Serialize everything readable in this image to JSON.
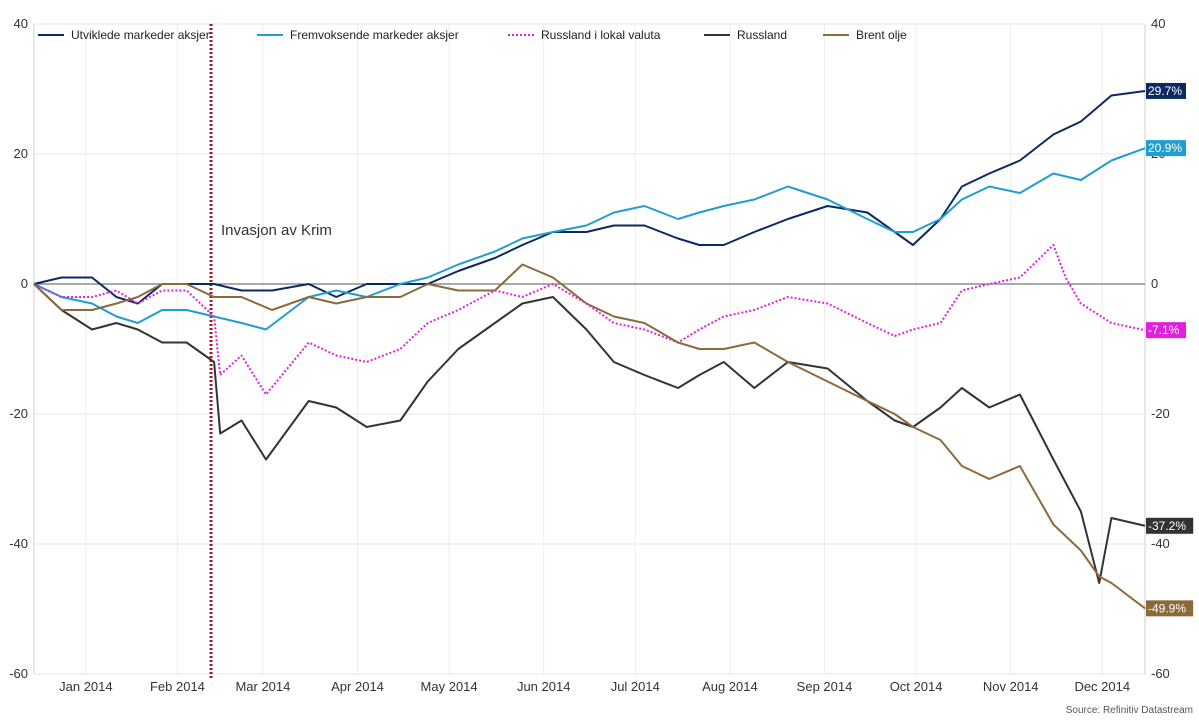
{
  "chart_data": {
    "type": "line",
    "y_axis": {
      "min": -60,
      "max": 40,
      "ticks": [
        40,
        20,
        0,
        -20,
        -40,
        -60
      ],
      "side": "both"
    },
    "x_axis": {
      "domain": [
        "2014-01-01",
        "2014-12-31"
      ],
      "ticks": [
        {
          "date": "2014-01-18",
          "label": "Jan 2014"
        },
        {
          "date": "2014-02-17",
          "label": "Feb 2014"
        },
        {
          "date": "2014-03-17",
          "label": "Mar 2014"
        },
        {
          "date": "2014-04-17",
          "label": "Apr 2014"
        },
        {
          "date": "2014-05-17",
          "label": "May 2014"
        },
        {
          "date": "2014-06-17",
          "label": "Jun 2014"
        },
        {
          "date": "2014-07-17",
          "label": "Jul 2014"
        },
        {
          "date": "2014-08-17",
          "label": "Aug 2014"
        },
        {
          "date": "2014-09-17",
          "label": "Sep 2014"
        },
        {
          "date": "2014-10-17",
          "label": "Oct 2014"
        },
        {
          "date": "2014-11-17",
          "label": "Nov 2014"
        },
        {
          "date": "2014-12-17",
          "label": "Dec 2014"
        }
      ]
    },
    "grid": true,
    "zero_line": true,
    "legend_position": "top",
    "annotation": {
      "date": "2014-02-28",
      "label": "Invasjon av Krim",
      "color": "#a3142a"
    },
    "source": "Source: Refinitiv Datastream",
    "series": [
      {
        "name": "Utviklede markeder aksjer",
        "color": "#0b2a63",
        "style": "solid",
        "end_label": "29.7%",
        "points": [
          [
            "2014-01-01",
            0
          ],
          [
            "2014-01-10",
            1
          ],
          [
            "2014-01-20",
            1
          ],
          [
            "2014-01-28",
            -2
          ],
          [
            "2014-02-04",
            -3
          ],
          [
            "2014-02-12",
            0
          ],
          [
            "2014-02-20",
            0
          ],
          [
            "2014-03-01",
            0
          ],
          [
            "2014-03-10",
            -1
          ],
          [
            "2014-03-20",
            -1
          ],
          [
            "2014-04-01",
            0
          ],
          [
            "2014-04-10",
            -2
          ],
          [
            "2014-04-20",
            0
          ],
          [
            "2014-05-01",
            0
          ],
          [
            "2014-05-10",
            0
          ],
          [
            "2014-05-20",
            2
          ],
          [
            "2014-06-01",
            4
          ],
          [
            "2014-06-10",
            6
          ],
          [
            "2014-06-20",
            8
          ],
          [
            "2014-07-01",
            8
          ],
          [
            "2014-07-10",
            9
          ],
          [
            "2014-07-20",
            9
          ],
          [
            "2014-07-31",
            7
          ],
          [
            "2014-08-07",
            6
          ],
          [
            "2014-08-15",
            6
          ],
          [
            "2014-08-25",
            8
          ],
          [
            "2014-09-05",
            10
          ],
          [
            "2014-09-18",
            12
          ],
          [
            "2014-10-01",
            11
          ],
          [
            "2014-10-10",
            8
          ],
          [
            "2014-10-16",
            6
          ],
          [
            "2014-10-25",
            10
          ],
          [
            "2014-11-01",
            15
          ],
          [
            "2014-11-10",
            17
          ],
          [
            "2014-11-20",
            19
          ],
          [
            "2014-12-01",
            23
          ],
          [
            "2014-12-10",
            25
          ],
          [
            "2014-12-20",
            29
          ],
          [
            "2014-12-31",
            29.7
          ]
        ]
      },
      {
        "name": "Fremvoksende markeder aksjer",
        "color": "#1e9fd0",
        "style": "solid",
        "end_label": "20.9%",
        "points": [
          [
            "2014-01-01",
            0
          ],
          [
            "2014-01-10",
            -2
          ],
          [
            "2014-01-20",
            -3
          ],
          [
            "2014-01-28",
            -5
          ],
          [
            "2014-02-04",
            -6
          ],
          [
            "2014-02-12",
            -4
          ],
          [
            "2014-02-20",
            -4
          ],
          [
            "2014-03-01",
            -5
          ],
          [
            "2014-03-10",
            -6
          ],
          [
            "2014-03-18",
            -7
          ],
          [
            "2014-04-01",
            -2
          ],
          [
            "2014-04-10",
            -1
          ],
          [
            "2014-04-20",
            -2
          ],
          [
            "2014-05-01",
            0
          ],
          [
            "2014-05-10",
            1
          ],
          [
            "2014-05-20",
            3
          ],
          [
            "2014-06-01",
            5
          ],
          [
            "2014-06-10",
            7
          ],
          [
            "2014-06-20",
            8
          ],
          [
            "2014-07-01",
            9
          ],
          [
            "2014-07-10",
            11
          ],
          [
            "2014-07-20",
            12
          ],
          [
            "2014-07-31",
            10
          ],
          [
            "2014-08-07",
            11
          ],
          [
            "2014-08-15",
            12
          ],
          [
            "2014-08-25",
            13
          ],
          [
            "2014-09-05",
            15
          ],
          [
            "2014-09-18",
            13
          ],
          [
            "2014-10-01",
            10
          ],
          [
            "2014-10-10",
            8
          ],
          [
            "2014-10-16",
            8
          ],
          [
            "2014-10-25",
            10
          ],
          [
            "2014-11-01",
            13
          ],
          [
            "2014-11-10",
            15
          ],
          [
            "2014-11-20",
            14
          ],
          [
            "2014-12-01",
            17
          ],
          [
            "2014-12-10",
            16
          ],
          [
            "2014-12-20",
            19
          ],
          [
            "2014-12-31",
            20.9
          ]
        ]
      },
      {
        "name": "Russland i lokal valuta",
        "color": "#e020e0",
        "style": "dotted",
        "end_label": "-7.1%",
        "points": [
          [
            "2014-01-01",
            0
          ],
          [
            "2014-01-10",
            -2
          ],
          [
            "2014-01-20",
            -2
          ],
          [
            "2014-01-28",
            -1
          ],
          [
            "2014-02-04",
            -3
          ],
          [
            "2014-02-12",
            -1
          ],
          [
            "2014-02-20",
            -1
          ],
          [
            "2014-03-01",
            -5
          ],
          [
            "2014-03-03",
            -14
          ],
          [
            "2014-03-10",
            -11
          ],
          [
            "2014-03-18",
            -17
          ],
          [
            "2014-04-01",
            -9
          ],
          [
            "2014-04-10",
            -11
          ],
          [
            "2014-04-20",
            -12
          ],
          [
            "2014-05-01",
            -10
          ],
          [
            "2014-05-10",
            -6
          ],
          [
            "2014-05-20",
            -4
          ],
          [
            "2014-06-01",
            -1
          ],
          [
            "2014-06-10",
            -2
          ],
          [
            "2014-06-20",
            0
          ],
          [
            "2014-07-01",
            -3
          ],
          [
            "2014-07-10",
            -6
          ],
          [
            "2014-07-20",
            -7
          ],
          [
            "2014-07-31",
            -9
          ],
          [
            "2014-08-07",
            -7
          ],
          [
            "2014-08-15",
            -5
          ],
          [
            "2014-08-25",
            -4
          ],
          [
            "2014-09-05",
            -2
          ],
          [
            "2014-09-18",
            -3
          ],
          [
            "2014-10-01",
            -6
          ],
          [
            "2014-10-10",
            -8
          ],
          [
            "2014-10-16",
            -7
          ],
          [
            "2014-10-25",
            -6
          ],
          [
            "2014-11-01",
            -1
          ],
          [
            "2014-11-10",
            0
          ],
          [
            "2014-11-20",
            1
          ],
          [
            "2014-12-01",
            6
          ],
          [
            "2014-12-05",
            1
          ],
          [
            "2014-12-10",
            -3
          ],
          [
            "2014-12-20",
            -6
          ],
          [
            "2014-12-31",
            -7.1
          ]
        ]
      },
      {
        "name": "Russland",
        "color": "#333333",
        "style": "solid",
        "end_label": "-37.2%",
        "points": [
          [
            "2014-01-01",
            0
          ],
          [
            "2014-01-10",
            -4
          ],
          [
            "2014-01-20",
            -7
          ],
          [
            "2014-01-28",
            -6
          ],
          [
            "2014-02-04",
            -7
          ],
          [
            "2014-02-12",
            -9
          ],
          [
            "2014-02-20",
            -9
          ],
          [
            "2014-03-01",
            -12
          ],
          [
            "2014-03-03",
            -23
          ],
          [
            "2014-03-10",
            -21
          ],
          [
            "2014-03-18",
            -27
          ],
          [
            "2014-04-01",
            -18
          ],
          [
            "2014-04-10",
            -19
          ],
          [
            "2014-04-20",
            -22
          ],
          [
            "2014-05-01",
            -21
          ],
          [
            "2014-05-10",
            -15
          ],
          [
            "2014-05-20",
            -10
          ],
          [
            "2014-06-01",
            -6
          ],
          [
            "2014-06-10",
            -3
          ],
          [
            "2014-06-20",
            -2
          ],
          [
            "2014-07-01",
            -7
          ],
          [
            "2014-07-10",
            -12
          ],
          [
            "2014-07-20",
            -14
          ],
          [
            "2014-07-31",
            -16
          ],
          [
            "2014-08-07",
            -14
          ],
          [
            "2014-08-15",
            -12
          ],
          [
            "2014-08-25",
            -16
          ],
          [
            "2014-09-05",
            -12
          ],
          [
            "2014-09-18",
            -13
          ],
          [
            "2014-10-01",
            -18
          ],
          [
            "2014-10-10",
            -21
          ],
          [
            "2014-10-16",
            -22
          ],
          [
            "2014-10-25",
            -19
          ],
          [
            "2014-11-01",
            -16
          ],
          [
            "2014-11-10",
            -19
          ],
          [
            "2014-11-20",
            -17
          ],
          [
            "2014-12-01",
            -27
          ],
          [
            "2014-12-10",
            -35
          ],
          [
            "2014-12-16",
            -46
          ],
          [
            "2014-12-20",
            -36
          ],
          [
            "2014-12-31",
            -37.2
          ]
        ]
      },
      {
        "name": "Brent olje",
        "color": "#8c6a3a",
        "style": "solid",
        "end_label": "-49.9%",
        "points": [
          [
            "2014-01-01",
            0
          ],
          [
            "2014-01-10",
            -4
          ],
          [
            "2014-01-20",
            -4
          ],
          [
            "2014-01-28",
            -3
          ],
          [
            "2014-02-04",
            -2
          ],
          [
            "2014-02-12",
            0
          ],
          [
            "2014-02-20",
            0
          ],
          [
            "2014-03-01",
            -2
          ],
          [
            "2014-03-10",
            -2
          ],
          [
            "2014-03-20",
            -4
          ],
          [
            "2014-04-01",
            -2
          ],
          [
            "2014-04-10",
            -3
          ],
          [
            "2014-04-20",
            -2
          ],
          [
            "2014-05-01",
            -2
          ],
          [
            "2014-05-10",
            0
          ],
          [
            "2014-05-20",
            -1
          ],
          [
            "2014-06-01",
            -1
          ],
          [
            "2014-06-10",
            3
          ],
          [
            "2014-06-20",
            1
          ],
          [
            "2014-07-01",
            -3
          ],
          [
            "2014-07-10",
            -5
          ],
          [
            "2014-07-20",
            -6
          ],
          [
            "2014-07-31",
            -9
          ],
          [
            "2014-08-07",
            -10
          ],
          [
            "2014-08-15",
            -10
          ],
          [
            "2014-08-25",
            -9
          ],
          [
            "2014-09-05",
            -12
          ],
          [
            "2014-09-18",
            -15
          ],
          [
            "2014-10-01",
            -18
          ],
          [
            "2014-10-10",
            -20
          ],
          [
            "2014-10-16",
            -22
          ],
          [
            "2014-10-25",
            -24
          ],
          [
            "2014-11-01",
            -28
          ],
          [
            "2014-11-10",
            -30
          ],
          [
            "2014-11-20",
            -28
          ],
          [
            "2014-12-01",
            -37
          ],
          [
            "2014-12-10",
            -41
          ],
          [
            "2014-12-16",
            -45
          ],
          [
            "2014-12-20",
            -46
          ],
          [
            "2014-12-31",
            -49.9
          ]
        ]
      }
    ]
  }
}
